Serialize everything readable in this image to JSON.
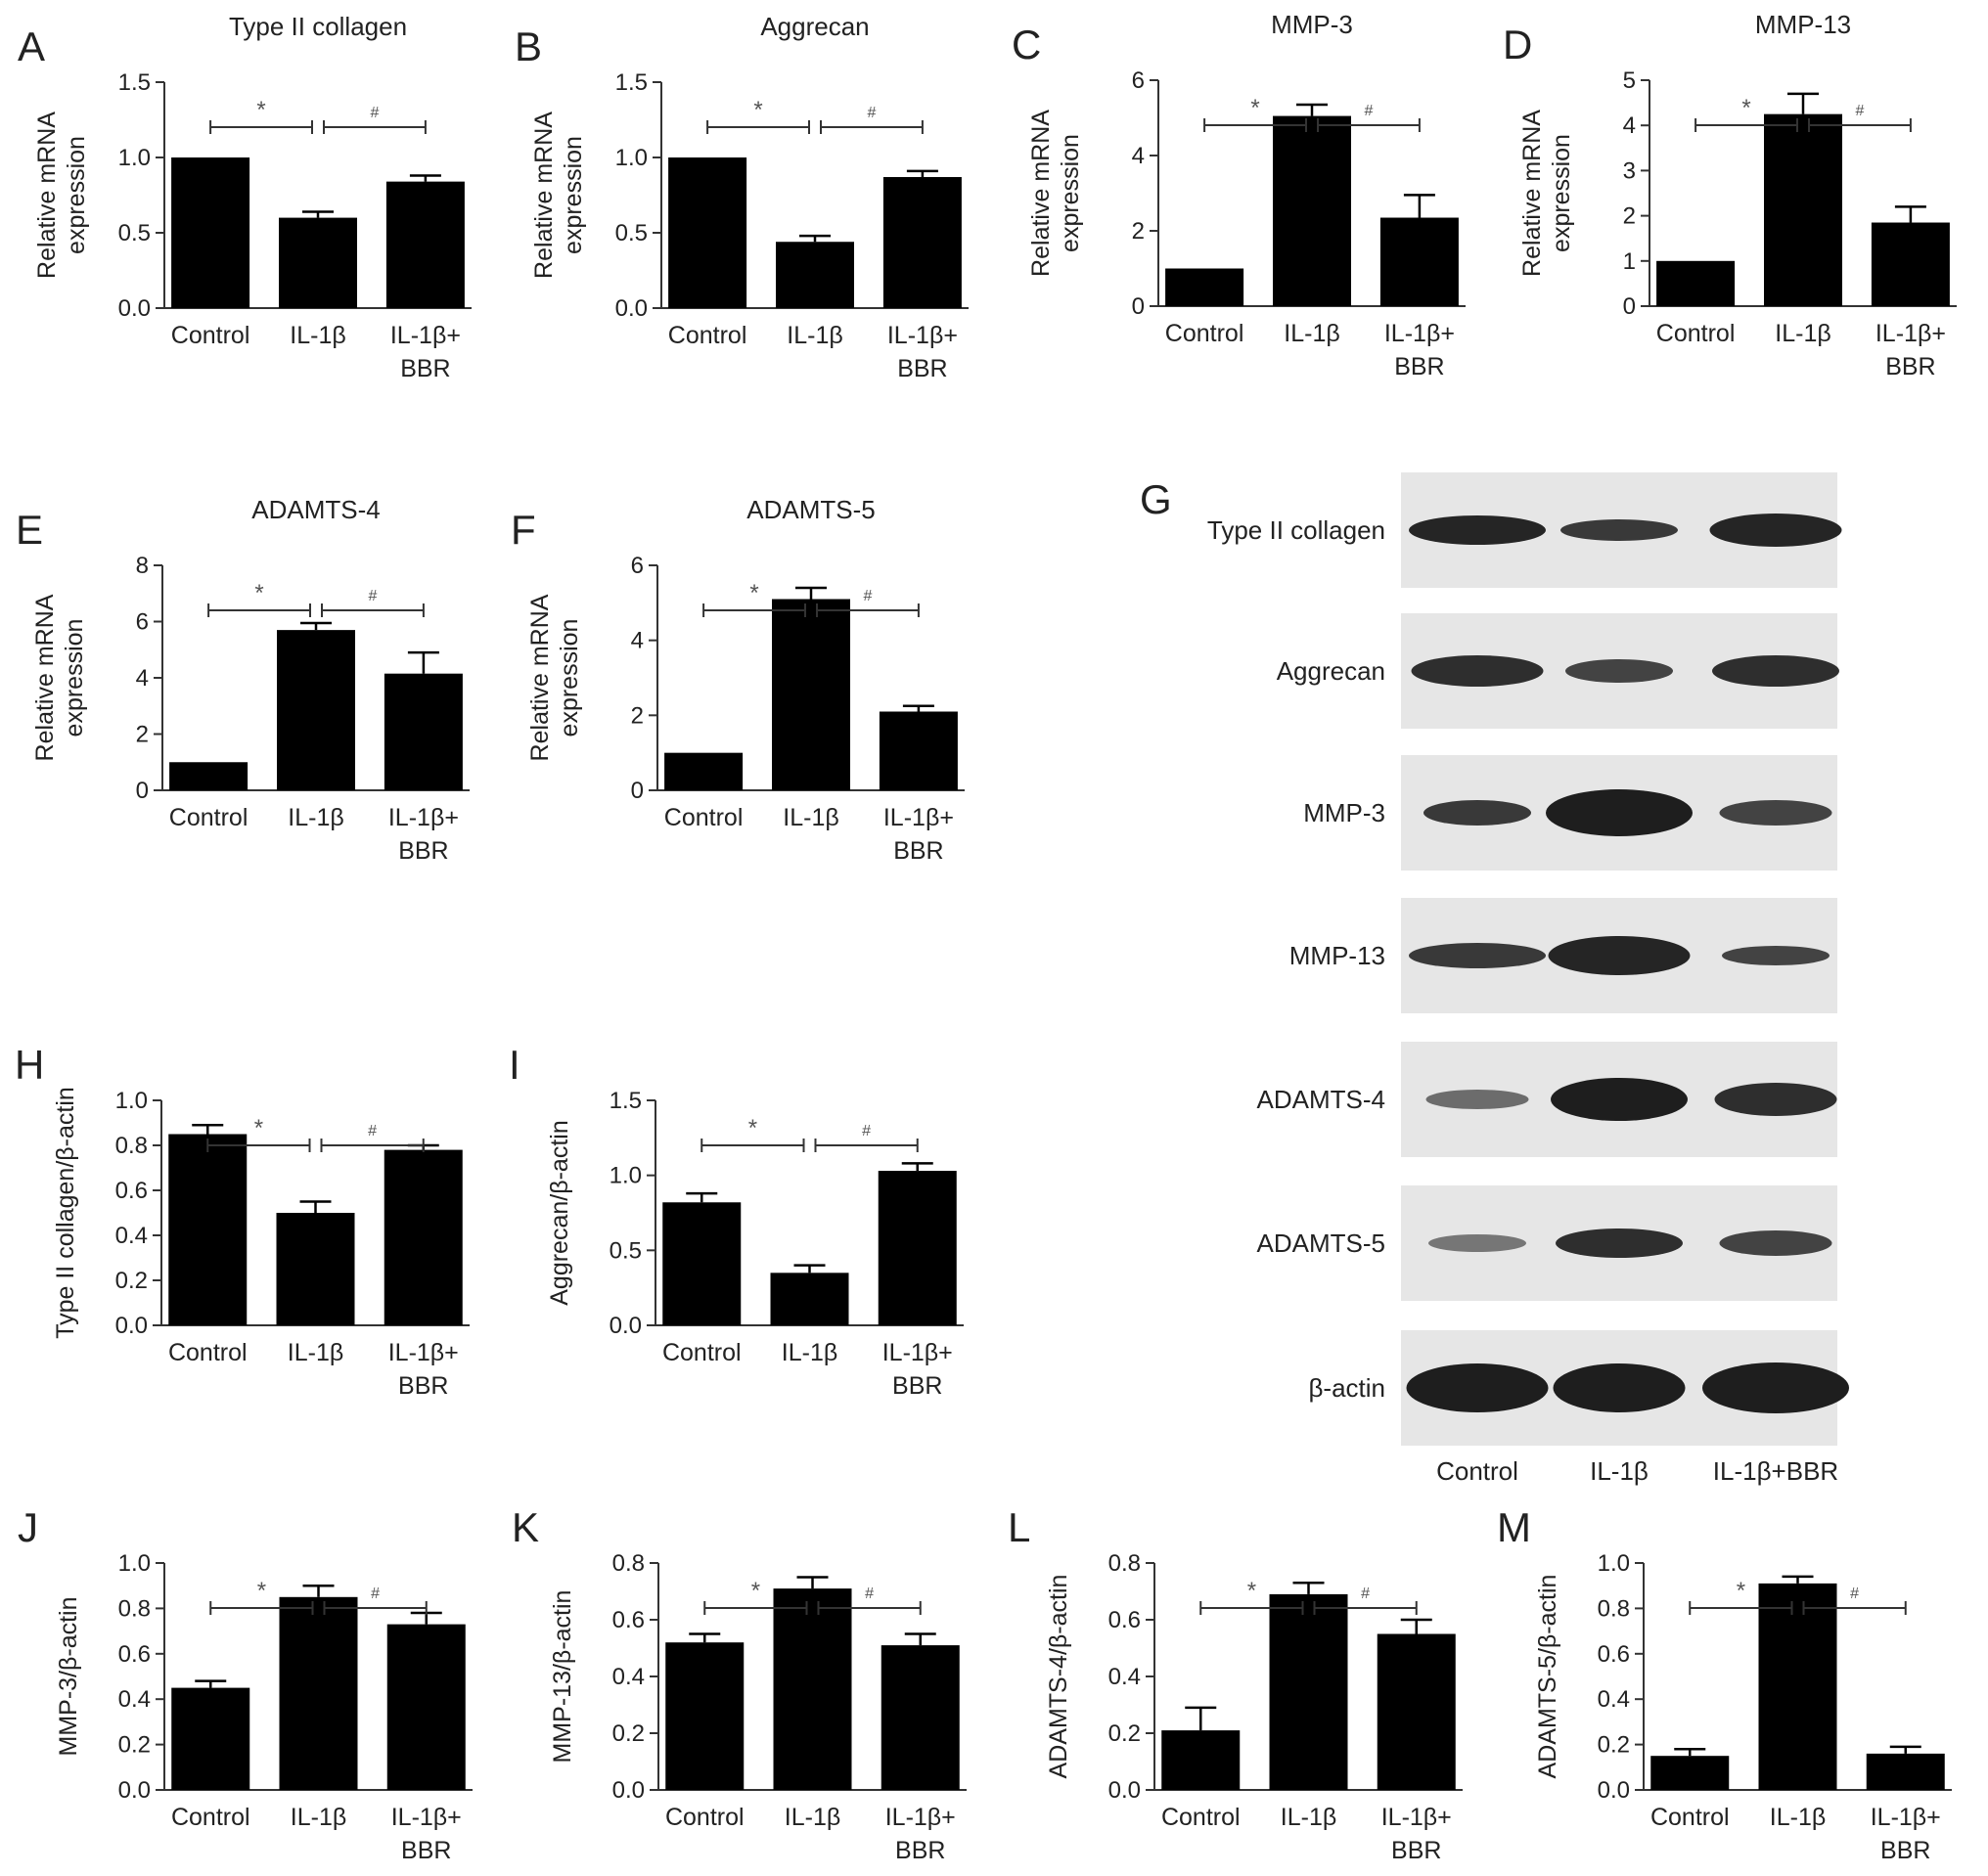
{
  "figure": {
    "charts": [
      {
        "letter": "A",
        "title": "Type II collagen",
        "ylabel": [
          "Relative mRNA",
          "expression"
        ],
        "ylim": [
          0,
          1.5
        ],
        "ticks": [
          "0.0",
          "0.5",
          "1.0",
          "1.5"
        ],
        "values": [
          1.0,
          0.6,
          0.84
        ],
        "errors": [
          0,
          0.04,
          0.04
        ],
        "sig": [
          "*",
          "#"
        ]
      },
      {
        "letter": "B",
        "title": "Aggrecan",
        "ylabel": [
          "Relative mRNA",
          "expression"
        ],
        "ylim": [
          0,
          1.5
        ],
        "ticks": [
          "0.0",
          "0.5",
          "1.0",
          "1.5"
        ],
        "values": [
          1.0,
          0.44,
          0.87
        ],
        "errors": [
          0,
          0.04,
          0.04
        ],
        "sig": [
          "*",
          "#"
        ]
      },
      {
        "letter": "C",
        "title": "MMP-3",
        "ylabel": [
          "Relative mRNA",
          "expression"
        ],
        "ylim": [
          0,
          6
        ],
        "ticks": [
          "0",
          "2",
          "4",
          "6"
        ],
        "values": [
          1.0,
          5.05,
          2.35
        ],
        "errors": [
          0,
          0.3,
          0.6
        ],
        "sig": [
          "*",
          "#"
        ]
      },
      {
        "letter": "D",
        "title": "MMP-13",
        "ylabel": [
          "Relative mRNA",
          "expression"
        ],
        "ylim": [
          0,
          5
        ],
        "ticks": [
          "0",
          "1",
          "2",
          "3",
          "4",
          "5"
        ],
        "values": [
          1.0,
          4.25,
          1.85
        ],
        "errors": [
          0,
          0.45,
          0.35
        ],
        "sig": [
          "*",
          "#"
        ]
      },
      {
        "letter": "E",
        "title": "ADAMTS-4",
        "ylabel": [
          "Relative mRNA",
          "expression"
        ],
        "ylim": [
          0,
          8
        ],
        "ticks": [
          "0",
          "2",
          "4",
          "6",
          "8"
        ],
        "values": [
          1.0,
          5.7,
          4.15
        ],
        "errors": [
          0,
          0.25,
          0.75
        ],
        "sig": [
          "*",
          "#"
        ]
      },
      {
        "letter": "F",
        "title": "ADAMTS-5",
        "ylabel": [
          "Relative mRNA",
          "expression"
        ],
        "ylim": [
          0,
          6
        ],
        "ticks": [
          "0",
          "2",
          "4",
          "6"
        ],
        "values": [
          1.0,
          5.1,
          2.1
        ],
        "errors": [
          0,
          0.3,
          0.15
        ],
        "sig": [
          "*",
          "#"
        ]
      },
      {
        "letter": "H",
        "title": "",
        "ylabel": [
          "Type II collagen/β-actin"
        ],
        "ylim": [
          0,
          1.0
        ],
        "ticks": [
          "0.0",
          "0.2",
          "0.4",
          "0.6",
          "0.8",
          "1.0"
        ],
        "values": [
          0.85,
          0.5,
          0.78
        ],
        "errors": [
          0.04,
          0.05,
          0.02
        ],
        "sig": [
          "*",
          "#"
        ]
      },
      {
        "letter": "I",
        "title": "",
        "ylabel": [
          "Aggrecan/β-actin"
        ],
        "ylim": [
          0,
          1.5
        ],
        "ticks": [
          "0.0",
          "0.5",
          "1.0",
          "1.5"
        ],
        "values": [
          0.82,
          0.35,
          1.03
        ],
        "errors": [
          0.06,
          0.05,
          0.05
        ],
        "sig": [
          "*",
          "#"
        ]
      },
      {
        "letter": "J",
        "title": "",
        "ylabel": [
          "MMP-3/β-actin"
        ],
        "ylim": [
          0,
          1.0
        ],
        "ticks": [
          "0.0",
          "0.2",
          "0.4",
          "0.6",
          "0.8",
          "1.0"
        ],
        "values": [
          0.45,
          0.85,
          0.73
        ],
        "errors": [
          0.03,
          0.05,
          0.05
        ],
        "sig": [
          "*",
          "#"
        ]
      },
      {
        "letter": "K",
        "title": "",
        "ylabel": [
          "MMP-13/β-actin"
        ],
        "ylim": [
          0,
          0.8
        ],
        "ticks": [
          "0.0",
          "0.2",
          "0.4",
          "0.6",
          "0.8"
        ],
        "values": [
          0.52,
          0.71,
          0.51
        ],
        "errors": [
          0.03,
          0.04,
          0.04
        ],
        "sig": [
          "*",
          "#"
        ]
      },
      {
        "letter": "L",
        "title": "",
        "ylabel": [
          "ADAMTS-4/β-actin"
        ],
        "ylim": [
          0,
          0.8
        ],
        "ticks": [
          "0.0",
          "0.2",
          "0.4",
          "0.6",
          "0.8"
        ],
        "values": [
          0.21,
          0.69,
          0.55
        ],
        "errors": [
          0.08,
          0.04,
          0.05
        ],
        "sig": [
          "*",
          "#"
        ]
      },
      {
        "letter": "M",
        "title": "",
        "ylabel": [
          "ADAMTS-5/β-actin"
        ],
        "ylim": [
          0,
          1.0
        ],
        "ticks": [
          "0.0",
          "0.2",
          "0.4",
          "0.6",
          "0.8",
          "1.0"
        ],
        "values": [
          0.15,
          0.91,
          0.16
        ],
        "errors": [
          0.03,
          0.03,
          0.03
        ],
        "sig": [
          "*",
          "#"
        ]
      }
    ],
    "categories": [
      [
        "Control"
      ],
      [
        "IL-1β"
      ],
      [
        "IL-1β+",
        "BBR"
      ]
    ],
    "blot": {
      "letter": "G",
      "proteins": [
        "Type II collagen",
        "Aggrecan",
        "MMP-3",
        "MMP-13",
        "ADAMTS-4",
        "ADAMTS-5",
        "β-actin"
      ],
      "lanes": [
        "Control",
        "IL-1β",
        "IL-1β+BBR"
      ]
    },
    "colors": {
      "bar": "#000000",
      "axis": "#333333",
      "text": "#222222",
      "band": "#1a1a1a",
      "blot_bg": "#e6e6e6"
    }
  },
  "chart_data": [
    {
      "type": "bar",
      "title": "Type II collagen",
      "ylabel": "Relative mRNA expression",
      "categories": [
        "Control",
        "IL-1β",
        "IL-1β+BBR"
      ],
      "values": [
        1.0,
        0.6,
        0.84
      ],
      "ylim": [
        0,
        1.5
      ]
    },
    {
      "type": "bar",
      "title": "Aggrecan",
      "ylabel": "Relative mRNA expression",
      "categories": [
        "Control",
        "IL-1β",
        "IL-1β+BBR"
      ],
      "values": [
        1.0,
        0.44,
        0.87
      ],
      "ylim": [
        0,
        1.5
      ]
    },
    {
      "type": "bar",
      "title": "MMP-3",
      "ylabel": "Relative mRNA expression",
      "categories": [
        "Control",
        "IL-1β",
        "IL-1β+BBR"
      ],
      "values": [
        1.0,
        5.05,
        2.35
      ],
      "ylim": [
        0,
        6
      ]
    },
    {
      "type": "bar",
      "title": "MMP-13",
      "ylabel": "Relative mRNA expression",
      "categories": [
        "Control",
        "IL-1β",
        "IL-1β+BBR"
      ],
      "values": [
        1.0,
        4.25,
        1.85
      ],
      "ylim": [
        0,
        5
      ]
    },
    {
      "type": "bar",
      "title": "ADAMTS-4",
      "ylabel": "Relative mRNA expression",
      "categories": [
        "Control",
        "IL-1β",
        "IL-1β+BBR"
      ],
      "values": [
        1.0,
        5.7,
        4.15
      ],
      "ylim": [
        0,
        8
      ]
    },
    {
      "type": "bar",
      "title": "ADAMTS-5",
      "ylabel": "Relative mRNA expression",
      "categories": [
        "Control",
        "IL-1β",
        "IL-1β+BBR"
      ],
      "values": [
        1.0,
        5.1,
        2.1
      ],
      "ylim": [
        0,
        6
      ]
    },
    {
      "type": "bar",
      "title": "",
      "ylabel": "Type II collagen/β-actin",
      "categories": [
        "Control",
        "IL-1β",
        "IL-1β+BBR"
      ],
      "values": [
        0.85,
        0.5,
        0.78
      ],
      "ylim": [
        0,
        1.0
      ]
    },
    {
      "type": "bar",
      "title": "",
      "ylabel": "Aggrecan/β-actin",
      "categories": [
        "Control",
        "IL-1β",
        "IL-1β+BBR"
      ],
      "values": [
        0.82,
        0.35,
        1.03
      ],
      "ylim": [
        0,
        1.5
      ]
    },
    {
      "type": "bar",
      "title": "",
      "ylabel": "MMP-3/β-actin",
      "categories": [
        "Control",
        "IL-1β",
        "IL-1β+BBR"
      ],
      "values": [
        0.45,
        0.85,
        0.73
      ],
      "ylim": [
        0,
        1.0
      ]
    },
    {
      "type": "bar",
      "title": "",
      "ylabel": "MMP-13/β-actin",
      "categories": [
        "Control",
        "IL-1β",
        "IL-1β+BBR"
      ],
      "values": [
        0.52,
        0.71,
        0.51
      ],
      "ylim": [
        0,
        0.8
      ]
    },
    {
      "type": "bar",
      "title": "",
      "ylabel": "ADAMTS-4/β-actin",
      "categories": [
        "Control",
        "IL-1β",
        "IL-1β+BBR"
      ],
      "values": [
        0.21,
        0.69,
        0.55
      ],
      "ylim": [
        0,
        0.8
      ]
    },
    {
      "type": "bar",
      "title": "",
      "ylabel": "ADAMTS-5/β-actin",
      "categories": [
        "Control",
        "IL-1β",
        "IL-1β+BBR"
      ],
      "values": [
        0.15,
        0.91,
        0.16
      ],
      "ylim": [
        0,
        1.0
      ]
    }
  ]
}
